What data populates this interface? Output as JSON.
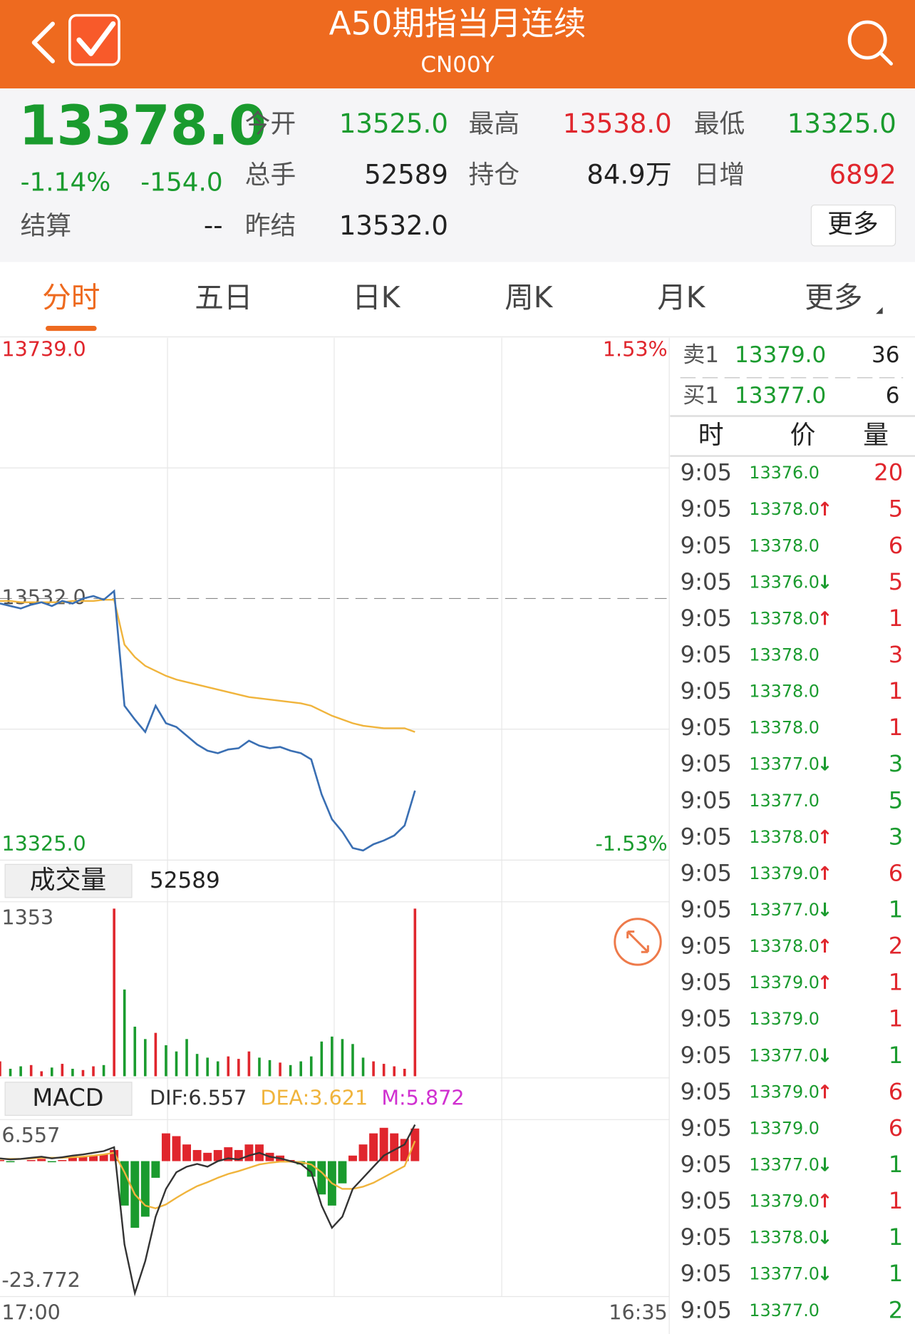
{
  "header": {
    "title": "A50期指当月连续",
    "subtitle": "CN00Y"
  },
  "quote": {
    "price": "13378.0",
    "change_pct": "-1.14%",
    "change": "-154.0",
    "fields": [
      [
        {
          "label": "今开",
          "value": "13525.0",
          "color": "#1a9b2e"
        },
        {
          "label": "最高",
          "value": "13538.0",
          "color": "#e0262d"
        },
        {
          "label": "最低",
          "value": "13325.0",
          "color": "#1a9b2e"
        }
      ],
      [
        {
          "label": "总手",
          "value": "52589",
          "color": "#222222"
        },
        {
          "label": "持仓",
          "value": "84.9万",
          "color": "#222222"
        },
        {
          "label": "日增",
          "value": "6892",
          "color": "#e0262d"
        }
      ],
      [
        {
          "label": "结算",
          "value": "--",
          "color": "#222222"
        },
        {
          "label": "昨结",
          "value": "13532.0",
          "color": "#222222"
        }
      ]
    ],
    "more": "更多"
  },
  "tabs": [
    "分时",
    "五日",
    "日K",
    "周K",
    "月K",
    "更多"
  ],
  "active_tab": 0,
  "chart_data": [
    {
      "type": "line",
      "series": [
        {
          "color": "#3a6fb3",
          "values": [
            13528,
            13526,
            13524,
            13527,
            13529,
            13526,
            13530,
            13528,
            13532,
            13534,
            13531,
            13538,
            13446,
            13435,
            13425,
            13446,
            13432,
            13429,
            13422,
            13415,
            13410,
            13408,
            13411,
            13412,
            13418,
            13414,
            13412,
            13413,
            13410,
            13408,
            13403,
            13375,
            13355,
            13345,
            13332,
            13330,
            13335,
            13338,
            13342,
            13350,
            13378
          ]
        },
        {
          "color": "#f0b43c",
          "values": [
            13530,
            13530,
            13529,
            13529,
            13529,
            13529,
            13529,
            13530,
            13530,
            13530,
            13531,
            13531,
            13495,
            13485,
            13478,
            13474,
            13470,
            13467,
            13465,
            13463,
            13461,
            13459,
            13457,
            13455,
            13453,
            13452,
            13451,
            13450,
            13449,
            13448,
            13446,
            13442,
            13438,
            13435,
            13432,
            13430,
            13429,
            13428,
            13428,
            13428,
            13425
          ]
        }
      ],
      "ylim": [
        13325,
        13739
      ],
      "yticks": [
        {
          "value": 13739,
          "label": "13739.0"
        },
        {
          "value": 13532,
          "label": "13532.0"
        },
        {
          "value": 13325,
          "label": "13325.0"
        }
      ],
      "y2lim": [
        -1.53,
        1.53
      ],
      "y2ticks": [
        {
          "value": 1.53,
          "label": "1.53%"
        },
        {
          "value": -1.53,
          "label": "-1.53%"
        }
      ],
      "up_color": "#e0262d",
      "down_color": "#1a9b2e"
    },
    {
      "type": "bar",
      "title": "成交量",
      "total": "52589",
      "values": [
        120,
        60,
        80,
        90,
        40,
        70,
        100,
        60,
        50,
        80,
        90,
        1353,
        700,
        400,
        300,
        350,
        250,
        200,
        300,
        180,
        150,
        120,
        160,
        140,
        200,
        150,
        130,
        110,
        90,
        120,
        160,
        280,
        320,
        300,
        260,
        150,
        120,
        100,
        80,
        60,
        1353
      ],
      "ylim": [
        0,
        1353
      ],
      "yticks": [
        1353
      ]
    },
    {
      "type": "macd",
      "title": "MACD",
      "series": [
        {
          "name": "DIF:6.557",
          "color": "#333333",
          "values": [
            0.5,
            0.3,
            0.4,
            0.6,
            0.8,
            0.5,
            0.7,
            1,
            1.2,
            1.5,
            1.8,
            2.5,
            -15,
            -23.772,
            -18,
            -10,
            -5,
            -2,
            -1,
            -0.5,
            -1,
            0,
            0.5,
            0.3,
            1,
            1.5,
            0.8,
            0.5,
            0,
            -0.5,
            -2,
            -8,
            -12,
            -10,
            -5,
            -3,
            -1,
            1,
            2,
            3,
            6.557
          ]
        },
        {
          "name": "DEA:3.621",
          "color": "#f0b43c",
          "values": [
            0.4,
            0.4,
            0.4,
            0.5,
            0.6,
            0.6,
            0.6,
            0.7,
            0.8,
            1,
            1.2,
            1.5,
            -2,
            -6,
            -8,
            -8.5,
            -7.8,
            -6.6,
            -5.5,
            -4.5,
            -3.8,
            -3,
            -2.3,
            -1.8,
            -1.2,
            -0.6,
            -0.3,
            -0.1,
            -0.1,
            -0.2,
            -0.6,
            -2,
            -4,
            -5,
            -5,
            -4.6,
            -3.9,
            -2.9,
            -1.9,
            -0.9,
            3.621
          ]
        },
        {
          "name": "M:5.872",
          "color": "#d030d0",
          "values": [
            0.2,
            -0.2,
            0,
            0.2,
            0.4,
            -0.2,
            0.2,
            0.6,
            0.8,
            1,
            1.2,
            2,
            -8,
            -12,
            -10,
            -3,
            5,
            4.5,
            3,
            2,
            1.5,
            2,
            2.5,
            2,
            3,
            3,
            1.5,
            1,
            0.2,
            -0.6,
            -2.8,
            -6,
            -8,
            -4,
            1,
            3,
            5,
            6,
            5,
            4,
            5.872
          ]
        }
      ],
      "ylim": [
        -23.772,
        6.557
      ],
      "yticks": [
        6.557,
        -23.772
      ],
      "x_labels": [
        "17:00",
        "16:35"
      ],
      "up_color": "#e0262d",
      "down_color": "#1a9b2e"
    }
  ],
  "order_book": [
    {
      "label": "卖1",
      "price": "13379.0",
      "qty": "36"
    },
    {
      "label": "买1",
      "price": "13377.0",
      "qty": "6"
    }
  ],
  "trade_header": [
    "时",
    "价",
    "量"
  ],
  "trades": [
    {
      "time": "9:05",
      "price": "13376.0",
      "qty": "20",
      "color": "#e0262d"
    },
    {
      "time": "9:05",
      "price": "13378.0",
      "dir": "↑",
      "qty": "5",
      "color": "#e0262d"
    },
    {
      "time": "9:05",
      "price": "13378.0",
      "qty": "6",
      "color": "#e0262d"
    },
    {
      "time": "9:05",
      "price": "13376.0",
      "dir": "↓",
      "qty": "5",
      "color": "#e0262d"
    },
    {
      "time": "9:05",
      "price": "13378.0",
      "dir": "↑",
      "qty": "1",
      "color": "#e0262d"
    },
    {
      "time": "9:05",
      "price": "13378.0",
      "qty": "3",
      "color": "#e0262d"
    },
    {
      "time": "9:05",
      "price": "13378.0",
      "qty": "1",
      "color": "#e0262d"
    },
    {
      "time": "9:05",
      "price": "13378.0",
      "qty": "1",
      "color": "#e0262d"
    },
    {
      "time": "9:05",
      "price": "13377.0",
      "dir": "↓",
      "qty": "3",
      "color": "#1a9b2e"
    },
    {
      "time": "9:05",
      "price": "13377.0",
      "qty": "5",
      "color": "#1a9b2e"
    },
    {
      "time": "9:05",
      "price": "13378.0",
      "dir": "↑",
      "qty": "3",
      "color": "#1a9b2e"
    },
    {
      "time": "9:05",
      "price": "13379.0",
      "dir": "↑",
      "qty": "6",
      "color": "#e0262d"
    },
    {
      "time": "9:05",
      "price": "13377.0",
      "dir": "↓",
      "qty": "1",
      "color": "#1a9b2e"
    },
    {
      "time": "9:05",
      "price": "13378.0",
      "dir": "↑",
      "qty": "2",
      "color": "#e0262d"
    },
    {
      "time": "9:05",
      "price": "13379.0",
      "dir": "↑",
      "qty": "1",
      "color": "#e0262d"
    },
    {
      "time": "9:05",
      "price": "13379.0",
      "qty": "1",
      "color": "#e0262d"
    },
    {
      "time": "9:05",
      "price": "13377.0",
      "dir": "↓",
      "qty": "1",
      "color": "#1a9b2e"
    },
    {
      "time": "9:05",
      "price": "13379.0",
      "dir": "↑",
      "qty": "6",
      "color": "#e0262d"
    },
    {
      "time": "9:05",
      "price": "13379.0",
      "qty": "6",
      "color": "#e0262d"
    },
    {
      "time": "9:05",
      "price": "13377.0",
      "dir": "↓",
      "qty": "1",
      "color": "#1a9b2e"
    },
    {
      "time": "9:05",
      "price": "13379.0",
      "dir": "↑",
      "qty": "1",
      "color": "#e0262d"
    },
    {
      "time": "9:05",
      "price": "13378.0",
      "dir": "↓",
      "qty": "1",
      "color": "#1a9b2e"
    },
    {
      "time": "9:05",
      "price": "13377.0",
      "dir": "↓",
      "qty": "1",
      "color": "#1a9b2e"
    },
    {
      "time": "9:05",
      "price": "13377.0",
      "qty": "2",
      "color": "#1a9b2e"
    }
  ]
}
